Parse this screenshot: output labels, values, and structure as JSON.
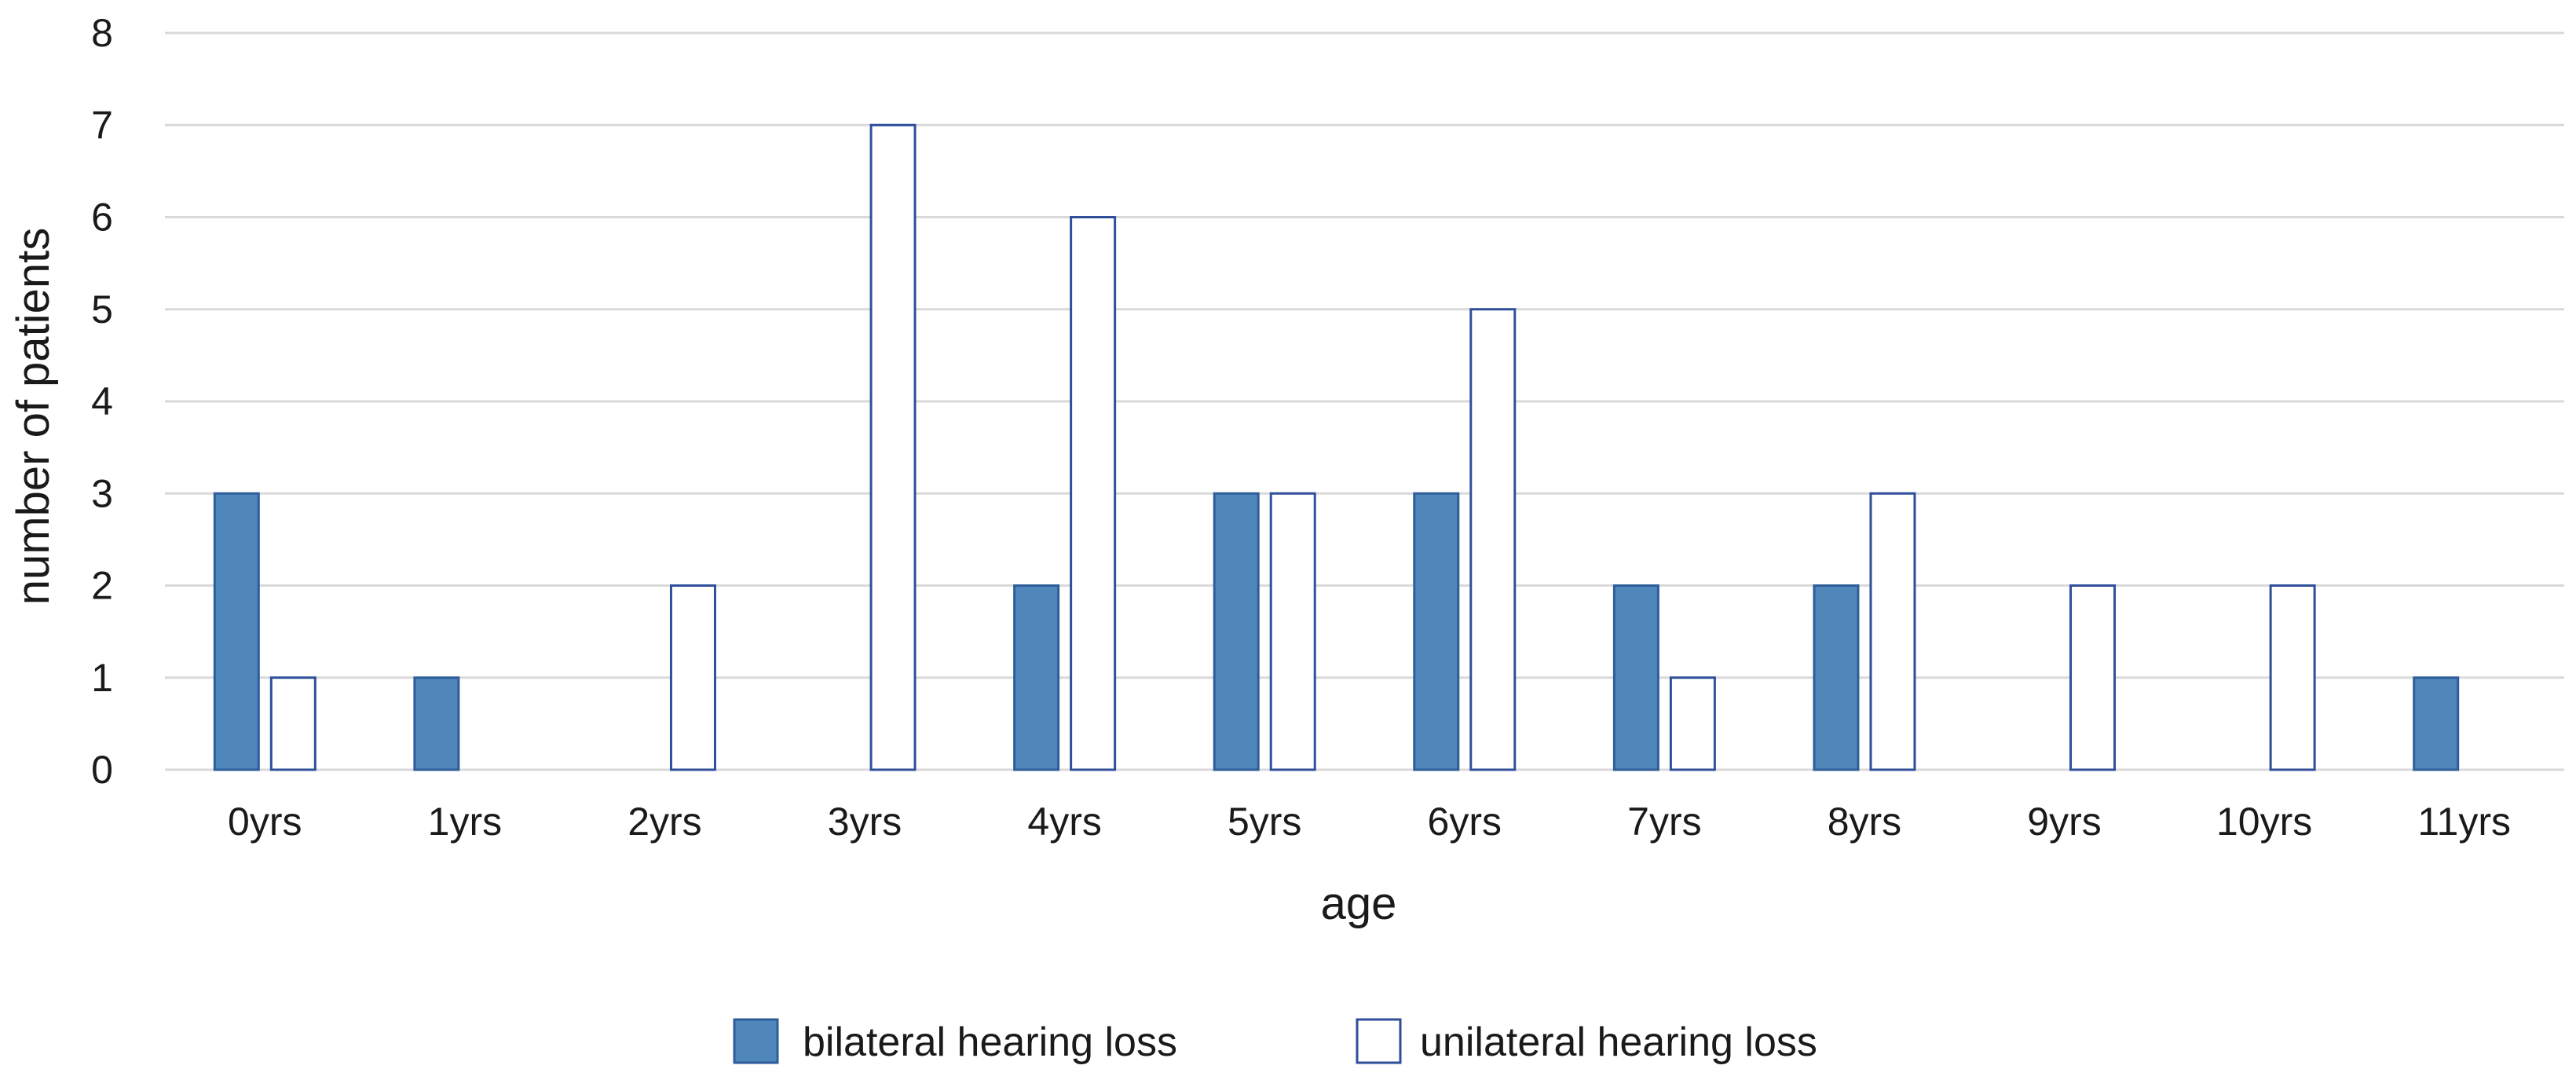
{
  "chart_data": {
    "type": "bar",
    "categories": [
      "0yrs",
      "1yrs",
      "2yrs",
      "3yrs",
      "4yrs",
      "5yrs",
      "6yrs",
      "7yrs",
      "8yrs",
      "9yrs",
      "10yrs",
      "11yrs"
    ],
    "series": [
      {
        "name": "bilateral hearing loss",
        "values": [
          3,
          1,
          0,
          0,
          2,
          3,
          3,
          2,
          2,
          0,
          0,
          1
        ],
        "fill": "#4f87bb",
        "stroke": "#2f5d9a"
      },
      {
        "name": "unilateral hearing loss",
        "values": [
          1,
          0,
          2,
          7,
          6,
          3,
          5,
          1,
          3,
          2,
          2,
          0
        ],
        "fill": "#ffffff",
        "stroke": "#2f4f9a"
      }
    ],
    "xlabel": "age",
    "ylabel": "number of patients",
    "ylim": [
      0,
      8
    ],
    "yticks": [
      0,
      1,
      2,
      3,
      4,
      5,
      6,
      7,
      8
    ],
    "grid": true,
    "legend_position": "bottom"
  }
}
